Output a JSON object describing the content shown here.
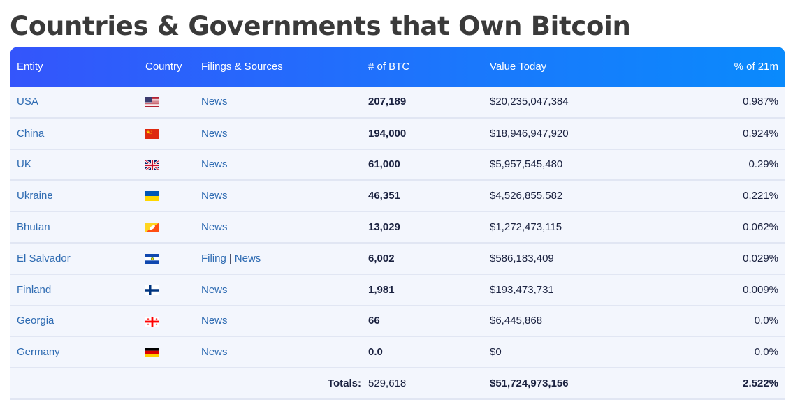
{
  "page": {
    "title": "Countries & Governments that Own Bitcoin"
  },
  "table": {
    "headers": {
      "entity": "Entity",
      "country": "Country",
      "filings": "Filings & Sources",
      "btc": "# of BTC",
      "value": "Value Today",
      "pct": "% of 21m"
    },
    "rows": [
      {
        "entity": "USA",
        "flag": "us-flag-icon",
        "sources": [
          "News"
        ],
        "btc": "207,189",
        "value": "$20,235,047,384",
        "pct": "0.987%"
      },
      {
        "entity": "China",
        "flag": "china-flag-icon",
        "sources": [
          "News"
        ],
        "btc": "194,000",
        "value": "$18,946,947,920",
        "pct": "0.924%"
      },
      {
        "entity": "UK",
        "flag": "uk-flag-icon",
        "sources": [
          "News"
        ],
        "btc": "61,000",
        "value": "$5,957,545,480",
        "pct": "0.29%"
      },
      {
        "entity": "Ukraine",
        "flag": "ukraine-flag-icon",
        "sources": [
          "News"
        ],
        "btc": "46,351",
        "value": "$4,526,855,582",
        "pct": "0.221%"
      },
      {
        "entity": "Bhutan",
        "flag": "bhutan-flag-icon",
        "sources": [
          "News"
        ],
        "btc": "13,029",
        "value": "$1,272,473,115",
        "pct": "0.062%"
      },
      {
        "entity": "El Salvador",
        "flag": "el-salvador-flag-icon",
        "sources": [
          "Filing",
          "News"
        ],
        "source_separator": "|",
        "btc": "6,002",
        "value": "$586,183,409",
        "pct": "0.029%"
      },
      {
        "entity": "Finland",
        "flag": "finland-flag-icon",
        "sources": [
          "News"
        ],
        "btc": "1,981",
        "value": "$193,473,731",
        "pct": "0.009%"
      },
      {
        "entity": "Georgia",
        "flag": "georgia-flag-icon",
        "sources": [
          "News"
        ],
        "btc": "66",
        "value": "$6,445,868",
        "pct": "0.0%"
      },
      {
        "entity": "Germany",
        "flag": "germany-flag-icon",
        "sources": [
          "News"
        ],
        "btc": "0.0",
        "value": "$0",
        "pct": "0.0%"
      }
    ],
    "totals": {
      "label": "Totals:",
      "btc": "529,618",
      "value": "$51,724,973,156",
      "pct": "2.522%"
    }
  },
  "colors": {
    "header_gradient_start": "#3455fb",
    "header_gradient_end": "#0a8afc",
    "row_background": "#f3f6fd",
    "link": "#2e6bb2",
    "title": "#3a3a3a"
  }
}
